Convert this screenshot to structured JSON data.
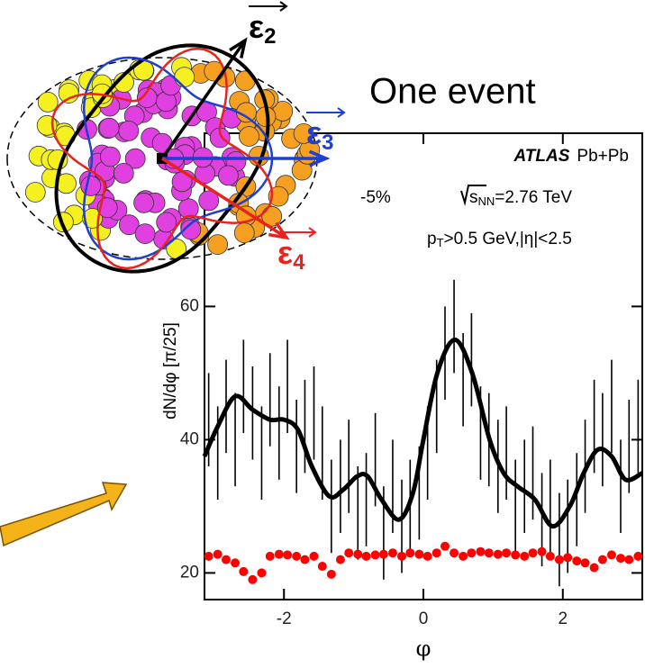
{
  "chart_data": {
    "type": "line",
    "title": "One event",
    "annotations": {
      "experiment": "ATLAS",
      "system": "Pb+Pb",
      "energy": {
        "root": "s",
        "sub": "NN",
        "rest": "=2.76 TeV"
      },
      "cut": {
        "p": "p",
        "sub": "T",
        "rest": ">0.5 GeV,|η|<2.5"
      },
      "centrality": "-5%"
    },
    "x_label": "φ",
    "y_label": "dN/dφ [π/25]",
    "xlim": [
      -3.14,
      3.14
    ],
    "ylim": [
      16,
      86
    ],
    "xticks": [
      -2,
      0,
      2
    ],
    "yticks": [
      20,
      40,
      60
    ],
    "x": [
      -3.08,
      -2.95,
      -2.83,
      -2.7,
      -2.58,
      -2.45,
      -2.32,
      -2.2,
      -2.07,
      -1.95,
      -1.82,
      -1.7,
      -1.57,
      -1.45,
      -1.32,
      -1.19,
      -1.07,
      -0.94,
      -0.82,
      -0.69,
      -0.57,
      -0.44,
      -0.31,
      -0.19,
      -0.06,
      0.06,
      0.19,
      0.31,
      0.44,
      0.57,
      0.69,
      0.82,
      0.94,
      1.07,
      1.19,
      1.32,
      1.45,
      1.57,
      1.7,
      1.82,
      1.95,
      2.07,
      2.2,
      2.32,
      2.45,
      2.57,
      2.7,
      2.83,
      2.95,
      3.08
    ],
    "series": [
      {
        "color": "#000000",
        "values": [
          43,
          38,
          45,
          40,
          48,
          44,
          38,
          46,
          41,
          48,
          39,
          42,
          44,
          38,
          30,
          33,
          36,
          29,
          31,
          37,
          26,
          33,
          27,
          30,
          32,
          38,
          45,
          53,
          57,
          49,
          52,
          41,
          40,
          36,
          38,
          30,
          33,
          35,
          28,
          30,
          25,
          27,
          31,
          36,
          42,
          40,
          45,
          33,
          39,
          42
        ],
        "errors": [
          7,
          7,
          7,
          7,
          7,
          7,
          7,
          7,
          7,
          7,
          7,
          7,
          7,
          7,
          7,
          7,
          7,
          7,
          7,
          7,
          7,
          7,
          7,
          7,
          7,
          7,
          7,
          7,
          7,
          7,
          7,
          7,
          7,
          7,
          7,
          7,
          7,
          7,
          7,
          7,
          7,
          7,
          7,
          7,
          7,
          7,
          7,
          7,
          7,
          7
        ]
      },
      {
        "color": "#ff0000",
        "values": [
          22.5,
          22.8,
          22,
          21.5,
          20.2,
          19,
          20,
          22.5,
          22.8,
          22.7,
          22.5,
          22,
          22.5,
          21,
          19.8,
          22,
          23,
          22.8,
          22.5,
          22.7,
          22.8,
          23,
          22.5,
          23,
          22.8,
          22.5,
          23,
          24,
          23,
          22.5,
          23,
          23.2,
          23,
          22.8,
          23,
          22.7,
          22.5,
          23,
          23.2,
          22.5,
          22,
          22.3,
          21.8,
          21.5,
          20.8,
          22,
          22.7,
          22.2,
          22,
          22.5
        ]
      }
    ],
    "fit": {
      "color": "#000000",
      "x": [
        -3.14,
        -2.95,
        -2.7,
        -2.45,
        -2.2,
        -2.0,
        -1.8,
        -1.6,
        -1.35,
        -1.15,
        -0.95,
        -0.8,
        -0.6,
        -0.35,
        -0.15,
        0.0,
        0.2,
        0.45,
        0.7,
        0.95,
        1.15,
        1.35,
        1.6,
        1.85,
        2.1,
        2.3,
        2.5,
        2.7,
        2.9,
        3.14
      ],
      "values": [
        37.5,
        42,
        46.5,
        44.5,
        43,
        43,
        41.5,
        36,
        31.5,
        32.5,
        34.5,
        34.5,
        31,
        28,
        32,
        40,
        50,
        55,
        50,
        40,
        35,
        33,
        31,
        27,
        30,
        35,
        38.5,
        37.5,
        34,
        35
      ]
    },
    "illustration": {
      "labels": [
        {
          "symbol": "ε",
          "index": "2",
          "color": "#000000"
        },
        {
          "symbol": "ε",
          "index": "3",
          "color": "#1f3fcf"
        },
        {
          "symbol": "ε",
          "index": "4",
          "color": "#e8231e"
        }
      ]
    }
  }
}
